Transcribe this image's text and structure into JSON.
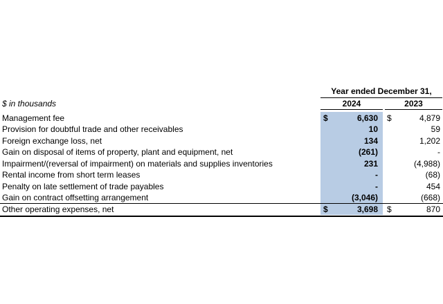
{
  "header": {
    "group_label": "Year ended December 31,",
    "units_label": "$ in thousands",
    "year_current": "2024",
    "year_prior": "2023"
  },
  "rows": [
    {
      "label": "Management fee",
      "cur_sym": "$",
      "cur": "6,630",
      "prev_sym": "$",
      "prev": "4,879"
    },
    {
      "label": "Provision for doubtful trade and other receivables",
      "cur_sym": "",
      "cur": "10",
      "prev_sym": "",
      "prev": "59"
    },
    {
      "label": "Foreign exchange loss, net",
      "cur_sym": "",
      "cur": "134",
      "prev_sym": "",
      "prev": "1,202"
    },
    {
      "label": "Gain on disposal of items of property, plant and equipment, net",
      "cur_sym": "",
      "cur": "(261)",
      "prev_sym": "",
      "prev": "-"
    },
    {
      "label": "Impairment/(reversal of impairment) on materials and supplies inventories",
      "cur_sym": "",
      "cur": "231",
      "prev_sym": "",
      "prev": "(4,988)"
    },
    {
      "label": "Rental income from short term leases",
      "cur_sym": "",
      "cur": "-",
      "prev_sym": "",
      "prev": "(68)"
    },
    {
      "label": "Penalty on late settlement of trade payables",
      "cur_sym": "",
      "cur": "-",
      "prev_sym": "",
      "prev": "454"
    },
    {
      "label": "Gain on contract offsetting arrangement",
      "cur_sym": "",
      "cur": "(3,046)",
      "prev_sym": "",
      "prev": "(668)"
    }
  ],
  "total": {
    "label": "Other operating expenses, net",
    "cur_sym": "$",
    "cur": "3,698",
    "prev_sym": "$",
    "prev": "870"
  },
  "colors": {
    "highlight": "#b8cce4"
  }
}
